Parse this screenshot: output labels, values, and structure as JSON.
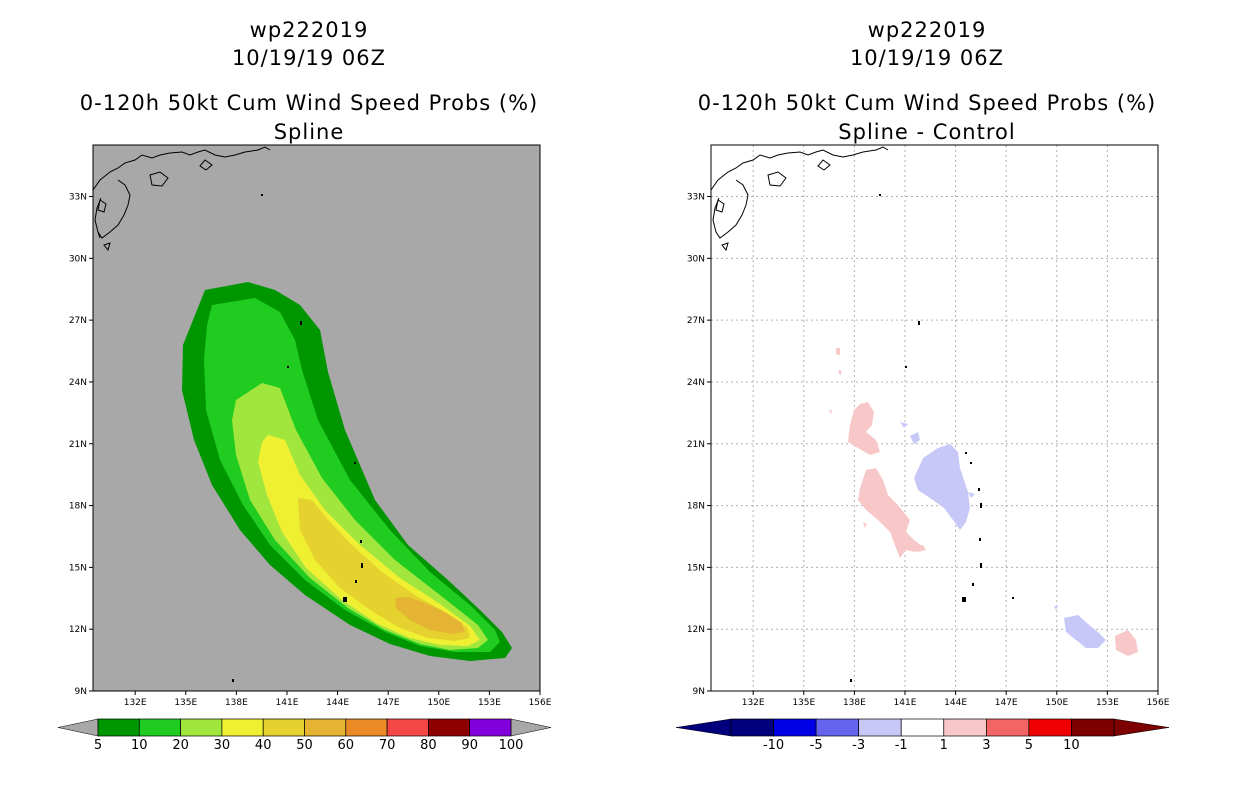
{
  "chart_data": [
    {
      "type": "contour_map",
      "storm_id": "wp222019",
      "date": "10/19/19 06Z",
      "title": "0-120h 50kt Cum Wind Speed Probs (%)",
      "subtitle": "Spline",
      "lon_range": [
        129.5,
        156
      ],
      "lat_range": [
        9,
        35.5
      ],
      "xticks": [
        "132E",
        "135E",
        "138E",
        "141E",
        "144E",
        "147E",
        "150E",
        "153E",
        "156E"
      ],
      "yticks": [
        "9N",
        "12N",
        "15N",
        "18N",
        "21N",
        "24N",
        "27N",
        "30N",
        "33N"
      ],
      "background": "#a8a8a8",
      "colorbar": {
        "labels": [
          "5",
          "10",
          "20",
          "30",
          "40",
          "50",
          "60",
          "70",
          "80",
          "90",
          "100"
        ],
        "colors": [
          "#009600",
          "#1fcc1f",
          "#a1e63d",
          "#f0f032",
          "#e6d22e",
          "#e4b432",
          "#eb8a26",
          "#f54646",
          "#8e0000",
          "#8200dc"
        ]
      },
      "contour_levels": [
        5,
        10,
        20,
        30,
        40,
        50,
        60
      ],
      "max_probability_location": "approx 150E 12.5N"
    },
    {
      "type": "contour_map",
      "storm_id": "wp222019",
      "date": "10/19/19 06Z",
      "title": "0-120h 50kt Cum Wind Speed Probs (%)",
      "subtitle": "Spline - Control",
      "lon_range": [
        129.5,
        156
      ],
      "lat_range": [
        9,
        35.5
      ],
      "xticks": [
        "132E",
        "135E",
        "138E",
        "141E",
        "144E",
        "147E",
        "150E",
        "153E",
        "156E"
      ],
      "yticks": [
        "9N",
        "12N",
        "15N",
        "18N",
        "21N",
        "24N",
        "27N",
        "30N",
        "33N"
      ],
      "background": "#ffffff",
      "colorbar": {
        "labels": [
          "-10",
          "-5",
          "-3",
          "-1",
          "1",
          "3",
          "5",
          "10"
        ],
        "colors": [
          "#00007d",
          "#0000e6",
          "#6464ee",
          "#c8c8f8",
          "#ffffff",
          "#f8c8c8",
          "#f36464",
          "#f00000",
          "#7d0000"
        ]
      },
      "difference_regions": [
        {
          "sign": "positive",
          "band": "1 to 3",
          "location": "139-141E 17-22N"
        },
        {
          "sign": "negative",
          "band": "-3 to -1",
          "location": "142-145E 18-21N"
        },
        {
          "sign": "negative",
          "band": "-3 to -1",
          "location": "150.5-153E 11-12.5N"
        },
        {
          "sign": "positive",
          "band": "1 to 3",
          "location": "153.5-155E 10.8-11.8N"
        }
      ]
    }
  ]
}
